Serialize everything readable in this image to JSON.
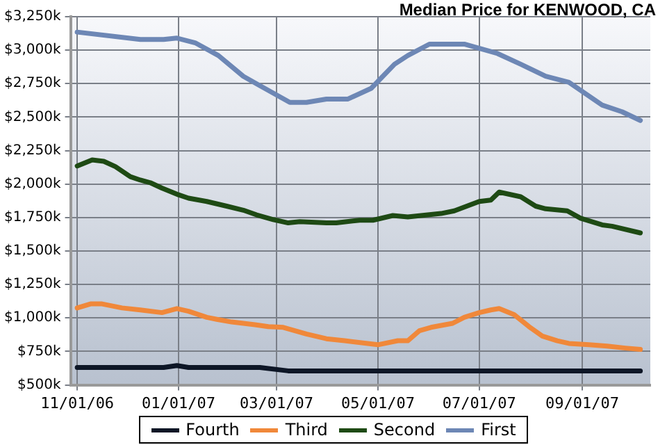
{
  "chart_data": {
    "type": "line",
    "title": "Median Price for KENWOOD, CA",
    "grid": true,
    "legend": "bottom",
    "marker": "none",
    "line_style": "solid",
    "xlim": [
      "2006-10-28",
      "2007-10-12"
    ],
    "xticks": [
      {
        "value": "2006-11-01",
        "label": "11/01/06"
      },
      {
        "value": "2007-01-01",
        "label": "01/01/07"
      },
      {
        "value": "2007-03-01",
        "label": "03/01/07"
      },
      {
        "value": "2007-05-01",
        "label": "05/01/07"
      },
      {
        "value": "2007-07-01",
        "label": "07/01/07"
      },
      {
        "value": "2007-09-01",
        "label": "09/01/07"
      }
    ],
    "ylim": [
      500,
      3250
    ],
    "yticks": [
      {
        "value": 500,
        "label": "$500k"
      },
      {
        "value": 750,
        "label": "$750k"
      },
      {
        "value": 1000,
        "label": "$1,000k"
      },
      {
        "value": 1250,
        "label": "$1,250k"
      },
      {
        "value": 1500,
        "label": "$1,500k"
      },
      {
        "value": 1750,
        "label": "$1,750k"
      },
      {
        "value": 2000,
        "label": "$2,000k"
      },
      {
        "value": 2250,
        "label": "$2,250k"
      },
      {
        "value": 2500,
        "label": "$2,500k"
      },
      {
        "value": 2750,
        "label": "$2,750k"
      },
      {
        "value": 3000,
        "label": "$3,000k"
      },
      {
        "value": 3250,
        "label": "$3,250k"
      }
    ],
    "series": [
      {
        "name": "Fourth",
        "color": "#0d1626",
        "x": [
          "2006-11-01",
          "2006-12-23",
          "2006-12-31",
          "2007-01-07",
          "2007-02-19",
          "2007-03-08",
          "2007-10-06"
        ],
        "values": [
          630,
          630,
          645,
          630,
          630,
          605,
          605
        ]
      },
      {
        "name": "Third",
        "color": "#f0883a",
        "x": [
          "2006-11-01",
          "2006-11-09",
          "2006-11-16",
          "2006-11-28",
          "2006-12-09",
          "2006-12-22",
          "2006-12-31",
          "2007-01-07",
          "2007-01-18",
          "2007-01-24",
          "2007-02-02",
          "2007-02-09",
          "2007-02-16",
          "2007-02-24",
          "2007-03-05",
          "2007-03-19",
          "2007-03-31",
          "2007-04-11",
          "2007-05-01",
          "2007-05-13",
          "2007-05-19",
          "2007-05-26",
          "2007-06-02",
          "2007-06-15",
          "2007-06-22",
          "2007-07-01",
          "2007-07-08",
          "2007-07-13",
          "2007-07-22",
          "2007-07-31",
          "2007-08-08",
          "2007-08-17",
          "2007-08-24",
          "2007-09-05",
          "2007-09-16",
          "2007-09-27",
          "2007-10-06"
        ],
        "values": [
          1075,
          1105,
          1105,
          1075,
          1060,
          1040,
          1070,
          1050,
          1005,
          990,
          970,
          960,
          950,
          935,
          930,
          880,
          845,
          830,
          800,
          830,
          830,
          905,
          930,
          960,
          1005,
          1040,
          1060,
          1070,
          1025,
          935,
          865,
          830,
          810,
          800,
          790,
          775,
          765
        ]
      },
      {
        "name": "Second",
        "color": "#1e4a14",
        "x": [
          "2006-11-01",
          "2006-11-10",
          "2006-11-17",
          "2006-11-24",
          "2006-12-03",
          "2006-12-09",
          "2006-12-15",
          "2006-12-22",
          "2007-01-01",
          "2007-01-07",
          "2007-01-18",
          "2007-01-30",
          "2007-02-09",
          "2007-02-17",
          "2007-02-27",
          "2007-03-08",
          "2007-03-15",
          "2007-03-31",
          "2007-04-06",
          "2007-04-20",
          "2007-04-28",
          "2007-05-10",
          "2007-05-19",
          "2007-06-08",
          "2007-06-16",
          "2007-07-01",
          "2007-07-08",
          "2007-07-13",
          "2007-07-26",
          "2007-08-04",
          "2007-08-10",
          "2007-08-23",
          "2007-08-31",
          "2007-09-13",
          "2007-09-19",
          "2007-10-06"
        ],
        "values": [
          2135,
          2180,
          2170,
          2130,
          2055,
          2030,
          2010,
          1970,
          1920,
          1895,
          1870,
          1835,
          1805,
          1770,
          1735,
          1710,
          1720,
          1710,
          1710,
          1730,
          1730,
          1765,
          1755,
          1780,
          1800,
          1870,
          1880,
          1940,
          1905,
          1835,
          1815,
          1800,
          1745,
          1695,
          1685,
          1635
        ]
      },
      {
        "name": "First",
        "color": "#6d87b5",
        "x": [
          "2006-11-01",
          "2006-12-09",
          "2006-12-23",
          "2006-12-31",
          "2007-01-11",
          "2007-01-25",
          "2007-02-09",
          "2007-02-19",
          "2007-03-09",
          "2007-03-19",
          "2007-03-31",
          "2007-04-13",
          "2007-04-27",
          "2007-05-11",
          "2007-05-19",
          "2007-06-01",
          "2007-06-22",
          "2007-07-12",
          "2007-07-26",
          "2007-08-10",
          "2007-08-24",
          "2007-09-13",
          "2007-09-25",
          "2007-10-06"
        ],
        "values": [
          3135,
          3080,
          3080,
          3090,
          3055,
          2960,
          2805,
          2735,
          2610,
          2610,
          2635,
          2635,
          2715,
          2895,
          2960,
          3045,
          3045,
          2975,
          2895,
          2805,
          2760,
          2590,
          2540,
          2475
        ]
      }
    ]
  }
}
